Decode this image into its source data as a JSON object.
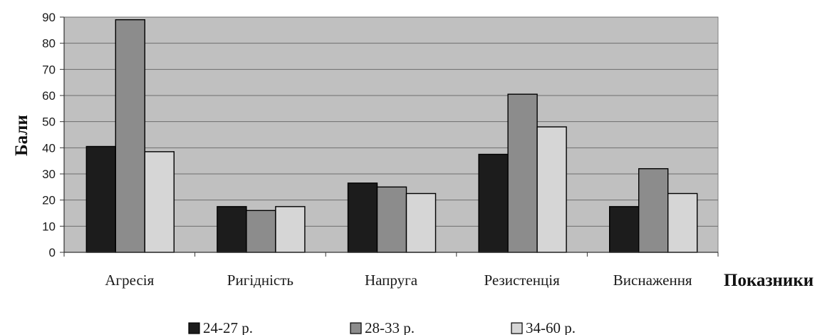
{
  "chart_data": {
    "type": "bar",
    "title": "",
    "xlabel": "Показники",
    "ylabel": "Бали",
    "ylim": [
      0,
      90
    ],
    "yticks": [
      0,
      10,
      20,
      30,
      40,
      50,
      60,
      70,
      80,
      90
    ],
    "grid": true,
    "legend_position": "bottom",
    "categories": [
      "Агресія",
      "Ригідність",
      "Напруга",
      "Резистенція",
      "Виснаження"
    ],
    "series": [
      {
        "name": "24-27 р.",
        "color": "#1c1c1c",
        "values": [
          40.5,
          17.5,
          26.5,
          37.5,
          17.5
        ]
      },
      {
        "name": "28-33 р.",
        "color": "#8c8c8c",
        "values": [
          89,
          16,
          25,
          60.5,
          32
        ]
      },
      {
        "name": "34-60 р.",
        "color": "#d6d6d6",
        "values": [
          38.5,
          17.5,
          22.5,
          48,
          22.5
        ]
      }
    ],
    "plot_background": "#c0c0c0"
  }
}
